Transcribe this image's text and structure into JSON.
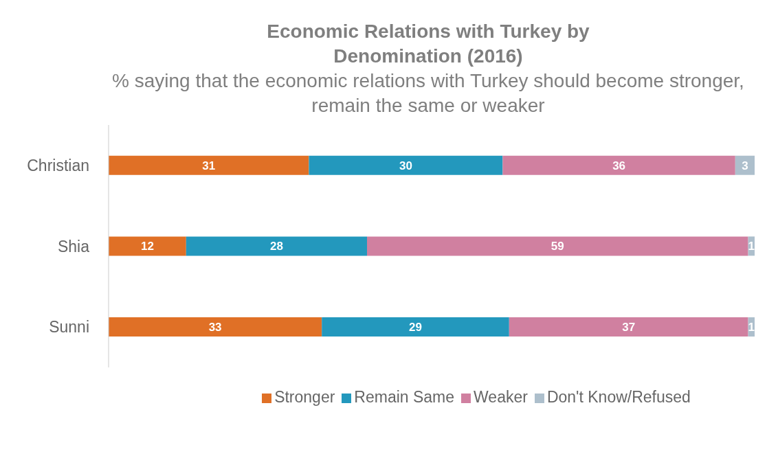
{
  "chart_data": {
    "type": "bar",
    "orientation": "horizontal",
    "stacked": true,
    "title": "Economic Relations with Turkey by Denomination (2016)",
    "subtitle": "% saying that the economic relations with Turkey should become stronger, remain the same or weaker",
    "categories": [
      "Christian",
      "Shia",
      "Sunni"
    ],
    "series": [
      {
        "name": "Stronger",
        "color": "#e07026",
        "values": [
          31,
          12,
          33
        ]
      },
      {
        "name": "Remain Same",
        "color": "#2398bd",
        "values": [
          30,
          28,
          29
        ]
      },
      {
        "name": "Weaker",
        "color": "#d080a0",
        "values": [
          36,
          59,
          37
        ]
      },
      {
        "name": "Don't Know/Refused",
        "color": "#adbfcc",
        "values": [
          3,
          1,
          1
        ]
      }
    ],
    "data_labels": true,
    "legend": "bottom"
  }
}
